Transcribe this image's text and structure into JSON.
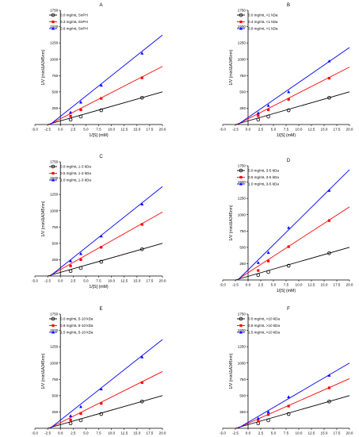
{
  "figure": {
    "chart_data": [
      {
        "type": "line",
        "title": "A",
        "xlabel": "1/[S] (mM)",
        "ylabel": "1/V (min/ΔA345nm)",
        "xlim": [
          -5.0,
          20.0
        ],
        "ylim": [
          0,
          1750
        ],
        "x_ticks": [
          "-5.0",
          "-2.5",
          "0.0",
          "2.5",
          "5.0",
          "7.5",
          "10.0",
          "12.5",
          "15.0",
          "17.5",
          "20.0"
        ],
        "y_ticks": [
          "250",
          "500",
          "750",
          "1000",
          "1250",
          "1500",
          "1750"
        ],
        "legend_position": "top-left",
        "series": [
          {
            "name": "0.0 mg/mL SnPH",
            "color": "#000000",
            "marker": "circle",
            "x": [
              2,
              4,
              8,
              16
            ],
            "y": [
              75,
              122,
              218,
              410
            ],
            "line_y_at_x_end": 500,
            "line_x_start": -2.5
          },
          {
            "name": "0.3 mg/mL SnPH",
            "color": "#ff0000",
            "marker": "square",
            "x": [
              2,
              4,
              8,
              16
            ],
            "y": [
              130,
              225,
              400,
              715
            ],
            "line_y_at_x_end": 890,
            "line_x_start": -2.2
          },
          {
            "name": "0.6 mg/mL SnPH",
            "color": "#0000ff",
            "marker": "triangle",
            "x": [
              2,
              4,
              8,
              16
            ],
            "y": [
              185,
              340,
              600,
              1090
            ],
            "line_y_at_x_end": 1370,
            "line_x_start": -2.0
          }
        ]
      },
      {
        "type": "line",
        "title": "B",
        "xlabel": "1/[S] (mM)",
        "ylabel": "1/V (min/ΔA345nm)",
        "xlim": [
          -5.0,
          20.0
        ],
        "ylim": [
          0,
          1750
        ],
        "x_ticks": [
          "-5.0",
          "-2.5",
          "0.0",
          "2.5",
          "5.0",
          "7.5",
          "10.0",
          "12.5",
          "15.0",
          "17.5",
          "20.0"
        ],
        "y_ticks": [
          "250",
          "500",
          "750",
          "1000",
          "1250",
          "1500",
          "1750"
        ],
        "legend_position": "top-left",
        "series": [
          {
            "name": "0.0 mg/mL <1 kDa",
            "color": "#000000",
            "marker": "circle",
            "x": [
              2,
              4,
              8,
              16
            ],
            "y": [
              75,
              122,
              218,
              410
            ],
            "line_y_at_x_end": 500,
            "line_x_start": -2.5
          },
          {
            "name": "0.4 mg/mL <1 kDa",
            "color": "#ff0000",
            "marker": "square",
            "x": [
              2,
              4,
              8,
              16
            ],
            "y": [
              135,
              225,
              385,
              710
            ],
            "line_y_at_x_end": 880,
            "line_x_start": -2.2
          },
          {
            "name": "0.8 mg/mL <1 kDa",
            "color": "#0000ff",
            "marker": "triangle",
            "x": [
              2,
              4,
              8,
              16
            ],
            "y": [
              175,
              290,
              500,
              970
            ],
            "line_y_at_x_end": 1180,
            "line_x_start": -2.0
          }
        ]
      },
      {
        "type": "line",
        "title": "C",
        "xlabel": "1/[S] (mM)",
        "ylabel": "1/V (min/ΔA345nm)",
        "xlim": [
          -5.0,
          20.0
        ],
        "ylim": [
          0,
          1750
        ],
        "x_ticks": [
          "-5.0",
          "-2.5",
          "0.0",
          "2.5",
          "5.0",
          "7.5",
          "10.0",
          "12.5",
          "15.0",
          "17.5",
          "20.0"
        ],
        "y_ticks": [
          "250",
          "500",
          "750",
          "1000",
          "1250",
          "1500",
          "1750"
        ],
        "legend_position": "top-left",
        "series": [
          {
            "name": "0.0 mg/mL 1-3 kDa",
            "color": "#000000",
            "marker": "circle",
            "x": [
              2,
              4,
              8,
              16
            ],
            "y": [
              75,
              122,
              218,
              410
            ],
            "line_y_at_x_end": 500,
            "line_x_start": -2.5
          },
          {
            "name": "0.5 mg/mL 1-3 kDa",
            "color": "#ff0000",
            "marker": "square",
            "x": [
              2,
              4,
              8,
              16
            ],
            "y": [
              155,
              250,
              440,
              790
            ],
            "line_y_at_x_end": 980,
            "line_x_start": -2.2
          },
          {
            "name": "1.0 mg/mL 1-3 kDa",
            "color": "#0000ff",
            "marker": "triangle",
            "x": [
              2,
              4,
              8,
              16
            ],
            "y": [
              230,
              340,
              610,
              1100
            ],
            "line_y_at_x_end": 1370,
            "line_x_start": -2.0
          }
        ]
      },
      {
        "type": "line",
        "title": "D",
        "xlabel": "1/[S] (mM)",
        "ylabel": "1/V (min/ΔA345nm)",
        "xlim": [
          -5.0,
          20.0
        ],
        "ylim": [
          0,
          1750
        ],
        "x_ticks": [
          "-5.0",
          "-2.5",
          "0.0",
          "2.5",
          "5.0",
          "7.5",
          "10.0",
          "12.5",
          "15.0",
          "17.5",
          "20.0"
        ],
        "y_ticks": [
          "250",
          "500",
          "750",
          "1000",
          "1250",
          "1500",
          "1750"
        ],
        "legend_position": "top-left",
        "series": [
          {
            "name": "0.0 mg/mL 3-5 kDa",
            "color": "#000000",
            "marker": "circle",
            "x": [
              2,
              4,
              8,
              16
            ],
            "y": [
              75,
              122,
              218,
              410
            ],
            "line_y_at_x_end": 500,
            "line_x_start": -2.5
          },
          {
            "name": "0.5 mg/mL 3-5 kDa",
            "color": "#ff0000",
            "marker": "square",
            "x": [
              2,
              4,
              8,
              16
            ],
            "y": [
              145,
              290,
              510,
              910
            ],
            "line_y_at_x_end": 1120,
            "line_x_start": -2.2
          },
          {
            "name": "1.0 mg/mL 3-5 kDa",
            "color": "#0000ff",
            "marker": "triangle",
            "x": [
              2,
              4,
              8,
              16
            ],
            "y": [
              265,
              420,
              800,
              1370
            ],
            "line_y_at_x_end": 1690,
            "line_x_start": -2.0
          }
        ]
      },
      {
        "type": "line",
        "title": "E",
        "xlabel": "1/[S] (mM)",
        "ylabel": "1/V (min/ΔA345nm)",
        "xlim": [
          -5.0,
          20.0
        ],
        "ylim": [
          0,
          1750
        ],
        "x_ticks": [
          "-5.0",
          "-2.5",
          "0.0",
          "2.5",
          "5.0",
          "7.5",
          "10.0",
          "12.5",
          "15.0",
          "17.5",
          "20.0"
        ],
        "y_ticks": [
          "250",
          "500",
          "750",
          "1000",
          "1250",
          "1500",
          "1750"
        ],
        "legend_position": "top-left",
        "series": [
          {
            "name": "0.0 mg/mL 5-10 kDa",
            "color": "#000000",
            "marker": "circle",
            "x": [
              2,
              4,
              8,
              16
            ],
            "y": [
              75,
              122,
              218,
              410
            ],
            "line_y_at_x_end": 500,
            "line_x_start": -2.5
          },
          {
            "name": "0.8 mg/mL 5-10 kDa",
            "color": "#ff0000",
            "marker": "square",
            "x": [
              2,
              4,
              8,
              16
            ],
            "y": [
              130,
              225,
              380,
              700
            ],
            "line_y_at_x_end": 870,
            "line_x_start": -2.2
          },
          {
            "name": "1.5 mg/mL 5-10 kDa",
            "color": "#0000ff",
            "marker": "triangle",
            "x": [
              2,
              4,
              8,
              16
            ],
            "y": [
              190,
              330,
              600,
              1090
            ],
            "line_y_at_x_end": 1360,
            "line_x_start": -2.0
          }
        ]
      },
      {
        "type": "line",
        "title": "F",
        "xlabel": "1/[S] (mM)",
        "ylabel": "1/V (min/ΔA345nm)",
        "xlim": [
          -5.0,
          20.0
        ],
        "ylim": [
          0,
          1750
        ],
        "x_ticks": [
          "-5.0",
          "-2.5",
          "0.0",
          "2.5",
          "5.0",
          "7.5",
          "10.0",
          "12.5",
          "15.0",
          "17.5",
          "20.0"
        ],
        "y_ticks": [
          "250",
          "500",
          "750",
          "1000",
          "1250",
          "1500",
          "1750"
        ],
        "legend_position": "top-left",
        "series": [
          {
            "name": "0.0 mg/mL >10 kDa",
            "color": "#000000",
            "marker": "circle",
            "x": [
              2,
              4,
              8,
              16
            ],
            "y": [
              75,
              122,
              218,
              410
            ],
            "line_y_at_x_end": 500,
            "line_x_start": -2.5
          },
          {
            "name": "0.8 mg/mL >10 kDa",
            "color": "#ff0000",
            "marker": "square",
            "x": [
              2,
              4,
              8,
              16
            ],
            "y": [
              110,
              210,
              340,
              620
            ],
            "line_y_at_x_end": 760,
            "line_x_start": -2.2
          },
          {
            "name": "1.5 mg/mL >10 kDa",
            "color": "#0000ff",
            "marker": "triangle",
            "x": [
              2,
              4,
              8,
              16
            ],
            "y": [
              150,
              250,
              480,
              810
            ],
            "line_y_at_x_end": 1000,
            "line_x_start": -2.0
          }
        ]
      }
    ]
  }
}
